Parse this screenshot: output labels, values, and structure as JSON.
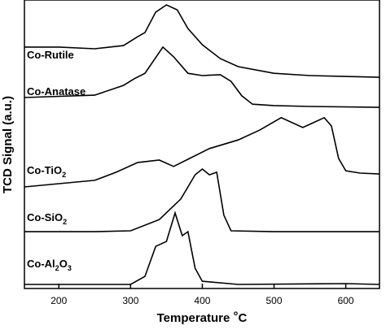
{
  "chart_data": {
    "type": "line",
    "x_label": "Temperature °C",
    "y_label": "TCD Signal (a.u.)",
    "xlim": [
      152,
      647
    ],
    "xticks": [
      200,
      300,
      400,
      500,
      600
    ],
    "ylim": [
      0,
      100
    ],
    "series": [
      {
        "name": "Co-Rutile",
        "color": "#000000",
        "x": [
          152,
          200,
          250,
          290,
          310,
          320,
          335,
          350,
          365,
          380,
          400,
          425,
          450,
          500,
          550,
          600,
          647
        ],
        "values": [
          83.7,
          83.7,
          83.1,
          84.2,
          87.3,
          88.7,
          95.8,
          98.3,
          96.6,
          90.1,
          84.5,
          79.7,
          76.9,
          74.6,
          73.8,
          73.5,
          73.2
        ]
      },
      {
        "name": "Co-Anatase",
        "color": "#000000",
        "x": [
          152,
          250,
          290,
          305,
          320,
          345,
          360,
          380,
          400,
          425,
          440,
          455,
          470,
          500,
          550,
          647
        ],
        "values": [
          66.2,
          67.0,
          70.4,
          72.7,
          74.6,
          83.7,
          80.3,
          74.6,
          73.8,
          74.1,
          71.8,
          66.8,
          63.9,
          63.4,
          63.1,
          62.8
        ]
      },
      {
        "name": "Co-TiO2",
        "color": "#000000",
        "x": [
          152,
          250,
          280,
          310,
          340,
          360,
          380,
          410,
          450,
          480,
          510,
          540,
          570,
          580,
          590,
          600,
          620,
          647
        ],
        "values": [
          35.2,
          37.5,
          40.3,
          43.7,
          44.5,
          42.3,
          44.8,
          48.5,
          51.5,
          54.9,
          59.2,
          55.8,
          59.2,
          56.3,
          45.1,
          40.8,
          40.0,
          39.7
        ]
      },
      {
        "name": "Co-SiO2",
        "color": "#000000",
        "x": [
          152,
          250,
          300,
          340,
          370,
          390,
          400,
          410,
          420,
          430,
          440,
          500,
          647
        ],
        "values": [
          19.7,
          19.7,
          20.0,
          23.9,
          31.0,
          39.4,
          41.4,
          39.4,
          40.3,
          25.4,
          20.0,
          19.7,
          19.7
        ]
      },
      {
        "name": "Co-Al2O3",
        "color": "#000000",
        "x": [
          152,
          300,
          320,
          335,
          350,
          362,
          372,
          380,
          390,
          400,
          450,
          600,
          647
        ],
        "values": [
          1.4,
          1.4,
          4.2,
          14.6,
          16.3,
          26.2,
          18.3,
          19.7,
          7.0,
          2.5,
          1.4,
          1.7,
          1.4
        ]
      }
    ]
  }
}
